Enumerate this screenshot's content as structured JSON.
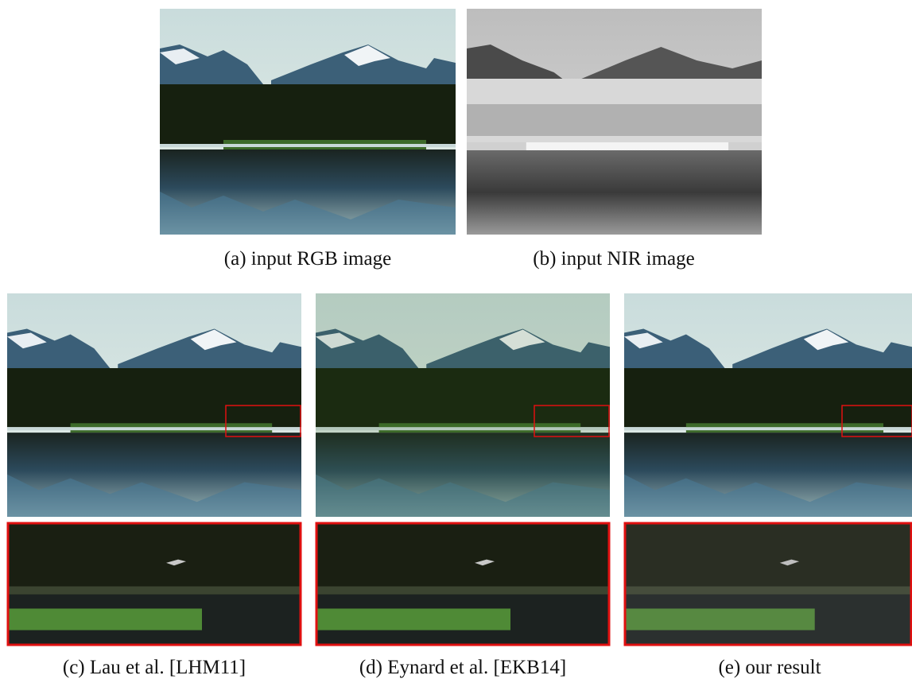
{
  "figure": {
    "panels": [
      {
        "caption": "(a) input RGB image"
      },
      {
        "caption": "(b) input NIR image"
      },
      {
        "caption": "(c) Lau et al. [LHM11]"
      },
      {
        "caption": "(d) Eynard et al. [EKB14]"
      },
      {
        "caption": "(e) our result"
      }
    ]
  }
}
